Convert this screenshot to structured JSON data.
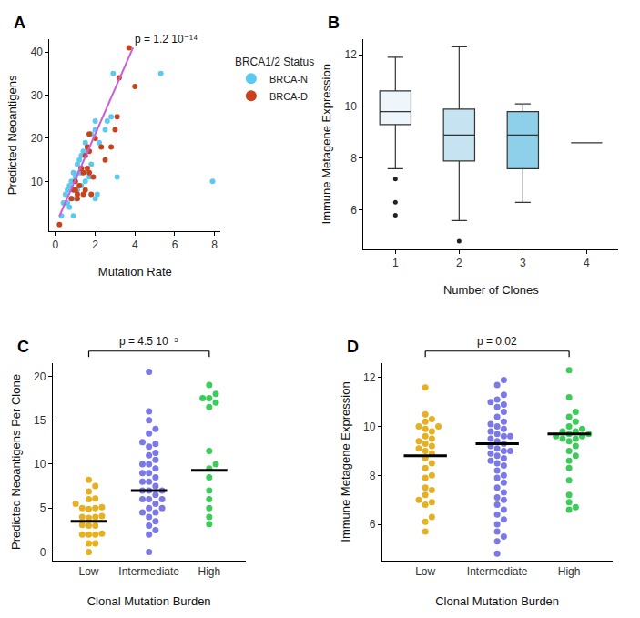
{
  "chart_data": [
    {
      "type": "scatter",
      "title": "A",
      "x_label": "Mutation Rate",
      "y_label": "Predicted Neoantigens",
      "legend": "right",
      "legend_title": "BRCA1/2 Status",
      "annotation": "p = 1.2 10⁻¹⁴",
      "xlim": [
        -0.3,
        8.3
      ],
      "xticks": [
        0,
        2,
        4,
        6,
        8
      ],
      "ylim": [
        -1.5,
        43
      ],
      "yticks": [
        10,
        20,
        30,
        40
      ],
      "series": [
        {
          "name": "BRCA-N",
          "color": "#5dc9f0",
          "x": [
            0.3,
            0.4,
            0.5,
            0.5,
            0.6,
            0.6,
            0.7,
            0.7,
            0.8,
            0.8,
            0.9,
            0.9,
            1.0,
            1.0,
            1.1,
            1.1,
            1.2,
            1.2,
            1.3,
            1.3,
            1.3,
            1.4,
            1.5,
            1.5,
            1.6,
            1.7,
            1.8,
            1.8,
            2.0,
            2.0,
            2.0,
            2.1,
            2.2,
            2.5,
            2.6,
            2.8,
            2.9,
            3.1,
            5.3,
            7.9
          ],
          "values": [
            2,
            5,
            5,
            7,
            5,
            8,
            4,
            9,
            6,
            10,
            2,
            12,
            6,
            11,
            8,
            14,
            12,
            15,
            9,
            12,
            16,
            17,
            10,
            19,
            18,
            11,
            14,
            21,
            6,
            22,
            24,
            7,
            19,
            22,
            24,
            25,
            35,
            11,
            35,
            10
          ]
        },
        {
          "name": "BRCA-D",
          "color": "#c9421c",
          "x": [
            0.2,
            0.8,
            0.9,
            1.0,
            1.1,
            1.2,
            1.4,
            1.0,
            1.1,
            1.3,
            1.5,
            1.8,
            1.6,
            1.9,
            1.4,
            1.7,
            1.3,
            1.5,
            1.7,
            1.6,
            2.0,
            1.7,
            2.3,
            2.8,
            2.5,
            3.0,
            3.1,
            4.0,
            3.2,
            3.7
          ],
          "values": [
            0,
            6,
            8,
            10,
            7,
            9,
            7,
            8,
            6,
            13,
            8,
            7,
            13,
            11,
            12,
            12,
            13,
            16,
            17,
            18,
            20,
            21,
            18,
            18,
            15,
            22,
            25,
            32,
            34,
            41
          ]
        },
        {
          "type": "line",
          "color": "#cc5fd9",
          "x": [
            0.2,
            3.9
          ],
          "values": [
            2,
            41
          ]
        }
      ]
    },
    {
      "type": "box",
      "title": "B",
      "x_label": "Number of Clones",
      "y_label": "Immune Metagene Expression",
      "categories": [
        "1",
        "2",
        "3",
        "4"
      ],
      "colors": [
        "#eef6fb",
        "#c6e3f1",
        "#8ed0ea",
        "#55bfe6"
      ],
      "q1": [
        9.3,
        7.9,
        7.6,
        8.6
      ],
      "median": [
        9.8,
        8.9,
        8.9,
        8.6
      ],
      "q3": [
        10.6,
        9.9,
        9.8,
        8.6
      ],
      "lower": [
        7.6,
        5.6,
        6.3,
        8.6
      ],
      "upper": [
        11.9,
        12.3,
        10.1,
        8.6
      ],
      "outliers": [
        [
          7.2,
          6.3,
          5.8
        ],
        [
          4.8
        ],
        [],
        []
      ],
      "ylim": [
        4.5,
        12.6
      ],
      "yticks": [
        6,
        8,
        10,
        12
      ]
    },
    {
      "type": "strip",
      "title": "C",
      "x_label": "Clonal Mutation Burden",
      "y_label": "Predicted Neoantigens Per Clone",
      "annotation": "p = 4.5 10⁻⁵",
      "categories": [
        "Low",
        "Intermediate",
        "High"
      ],
      "colors": [
        "#e6b020",
        "#7b78e8",
        "#3dcc5a"
      ],
      "values": [
        [
          8.2,
          7.5,
          6.9,
          6.0,
          6.1,
          5.5,
          5.0,
          5.0,
          5.1,
          4.9,
          4.0,
          4.1,
          4.0,
          3.9,
          3.0,
          3.0,
          3.1,
          2.0,
          2.0,
          2.1,
          2.0,
          1.0,
          1.0,
          0.0
        ],
        [
          20.5,
          16,
          15,
          14,
          13.5,
          12.5,
          12.3,
          12,
          11.3,
          11,
          10.5,
          10,
          10,
          9.5,
          9,
          9,
          8.5,
          8,
          8,
          7.5,
          7,
          7,
          7,
          6.5,
          6,
          6,
          6,
          5.5,
          5,
          5,
          4.5,
          4.5,
          4,
          3.5,
          3,
          2.5,
          2,
          0
        ],
        [
          19,
          18,
          17.5,
          17.5,
          17,
          16.5,
          11.5,
          10,
          9.5,
          8.5,
          7,
          6,
          5,
          4,
          3.2
        ]
      ],
      "means": [
        3.5,
        7.0,
        9.3
      ],
      "ylim": [
        -1,
        21.5
      ],
      "yticks": [
        0,
        5,
        10,
        15,
        20
      ]
    },
    {
      "type": "strip",
      "title": "D",
      "x_label": "Clonal Mutation Burden",
      "y_label": "Immune Metagene Expression",
      "annotation": "p = 0.02",
      "categories": [
        "Low",
        "Intermediate",
        "High"
      ],
      "colors": [
        "#e6b020",
        "#7b78e8",
        "#3dcc5a"
      ],
      "values": [
        [
          11.6,
          10.5,
          10.3,
          10.2,
          10.0,
          10.0,
          9.9,
          9.8,
          9.6,
          9.5,
          9.4,
          9.3,
          9.2,
          9.1,
          9.0,
          8.9,
          8.7,
          8.5,
          8.3,
          8.0,
          7.9,
          7.5,
          7.4,
          7.2,
          7.0,
          6.9,
          6.8,
          6.3,
          6.1,
          5.7
        ],
        [
          11.9,
          11.7,
          11.3,
          11.1,
          11.0,
          10.9,
          10.8,
          10.6,
          10.4,
          10.2,
          10.1,
          10.0,
          9.9,
          9.8,
          9.7,
          9.6,
          9.6,
          9.5,
          9.4,
          9.3,
          9.2,
          9.1,
          9.0,
          9.0,
          8.9,
          8.8,
          8.7,
          8.6,
          8.5,
          8.4,
          8.2,
          8.0,
          7.9,
          7.7,
          7.5,
          7.3,
          7.1,
          7.0,
          6.8,
          6.6,
          6.4,
          6.2,
          6.0,
          5.7,
          5.5,
          5.3,
          4.8
        ],
        [
          12.3,
          11.2,
          10.6,
          10.4,
          10.2,
          10.0,
          9.9,
          9.8,
          9.8,
          9.7,
          9.7,
          9.6,
          9.6,
          9.5,
          9.5,
          9.4,
          9.2,
          9.0,
          8.8,
          8.6,
          8.3,
          7.8,
          7.2,
          6.9,
          6.7,
          6.6
        ]
      ],
      "means": [
        8.8,
        9.3,
        9.7
      ],
      "ylim": [
        4.5,
        12.6
      ],
      "yticks": [
        6,
        8,
        10,
        12
      ]
    }
  ]
}
